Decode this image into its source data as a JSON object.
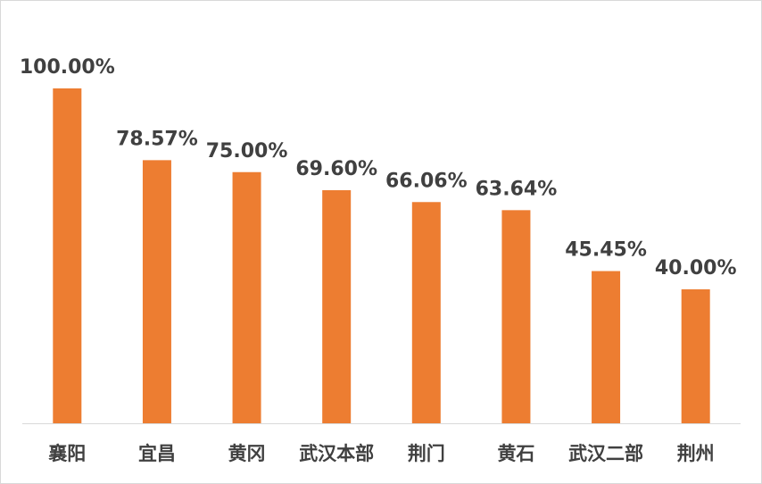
{
  "chart_data": {
    "type": "bar",
    "categories": [
      "襄阳",
      "宜昌",
      "黄冈",
      "武汉本部",
      "荆门",
      "黄石",
      "武汉二部",
      "荆州"
    ],
    "values": [
      100.0,
      78.57,
      75.0,
      69.6,
      66.06,
      63.64,
      45.45,
      40.0
    ],
    "data_labels": [
      "100.00%",
      "78.57%",
      "75.00%",
      "69.60%",
      "66.06%",
      "63.64%",
      "45.45%",
      "40.00%"
    ],
    "title": "",
    "xlabel": "",
    "ylabel": "",
    "ylim": [
      0,
      100
    ],
    "grid": false,
    "legend": "none",
    "bar_color": "#ED7D31",
    "axis_color": "#D9D9D9",
    "label_color": "#404040"
  }
}
